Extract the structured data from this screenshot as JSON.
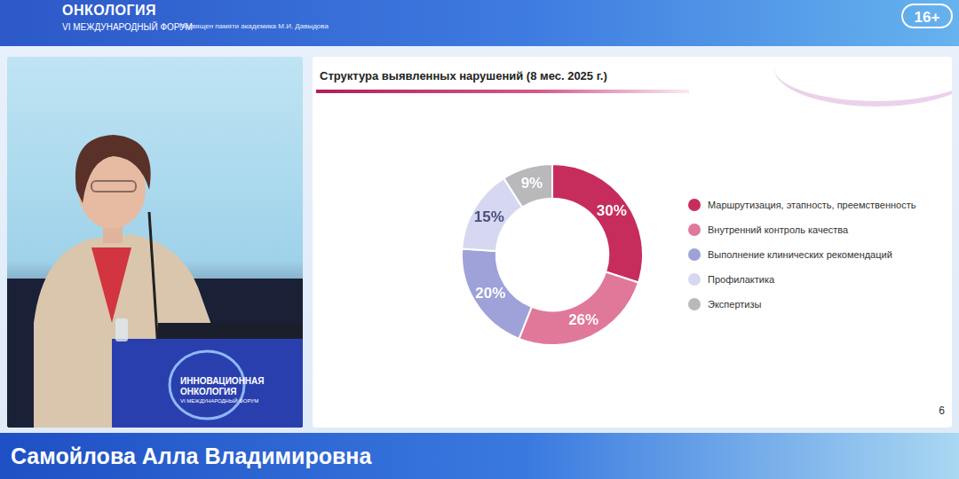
{
  "header": {
    "title": "ОНКОЛОГИЯ",
    "subtitle": "VI МЕЖДУНАРОДНЫЙ ФОРУМ",
    "dedication": "Посвящен памяти академика М.И. Давыдова",
    "age_rating": "16+"
  },
  "podium": {
    "title": "ИННОВАЦИОННАЯ ОНКОЛОГИЯ",
    "subtitle": "VI МЕЖДУНАРОДНЫЙ ФОРУМ"
  },
  "chart_data": {
    "type": "doughnut",
    "title": "Структура выявленных нарушений (8 мес. 2025 г.)",
    "categories": [
      "Маршрутизация, этапность, преемственность",
      "Внутренний контроль качества",
      "Выполнение клинических рекомендаций",
      "Профилактика",
      "Экспертизы"
    ],
    "values": [
      30,
      26,
      20,
      15,
      9
    ],
    "value_labels": [
      "30%",
      "26%",
      "20%",
      "15%",
      "9%"
    ],
    "colors": [
      "#c72d5c",
      "#e0789a",
      "#9ea2d8",
      "#d5d8f0",
      "#b9b9bb"
    ],
    "data_labels": true,
    "legend": "right"
  },
  "slide_number": 6,
  "speaker": "Самойлова Алла Владимировна"
}
